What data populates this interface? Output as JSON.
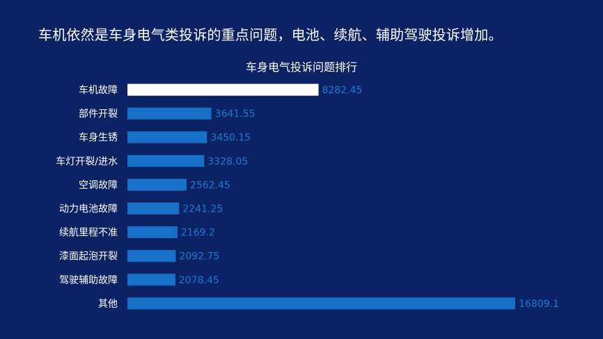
{
  "slide": {
    "headline": "车机依然是车身电气类投诉的重点问题，电池、续航、辅助驾驶投诉增加。"
  },
  "chart_data": {
    "type": "bar",
    "orientation": "horizontal",
    "title": "车身电气投诉问题排行",
    "categories": [
      "车机故障",
      "部件开裂",
      "车身生锈",
      "车灯开裂/进水",
      "空调故障",
      "动力电池故障",
      "续航里程不准",
      "漆面起泡开裂",
      "驾驶辅助故障",
      "其他"
    ],
    "values": [
      8282.45,
      3641.55,
      3450.15,
      3328.05,
      2562.45,
      2241.25,
      2169.2,
      2092.75,
      2078.45,
      16809.1
    ],
    "value_labels": [
      "8282.45",
      "3641.55",
      "3450.15",
      "3328.05",
      "2562.45",
      "2241.25",
      "2169.2",
      "2092.75",
      "2078.45",
      "16809.1"
    ],
    "highlight_index": 0,
    "colors": {
      "background": "#0b2364",
      "bar": "#1670c8",
      "highlight_bar": "#ffffff",
      "value_label": "#1f78d1",
      "category_label": "#ffffff",
      "title": "#ffffff"
    },
    "xlim": [
      0,
      16809.1
    ],
    "grid": false,
    "legend": "none"
  }
}
